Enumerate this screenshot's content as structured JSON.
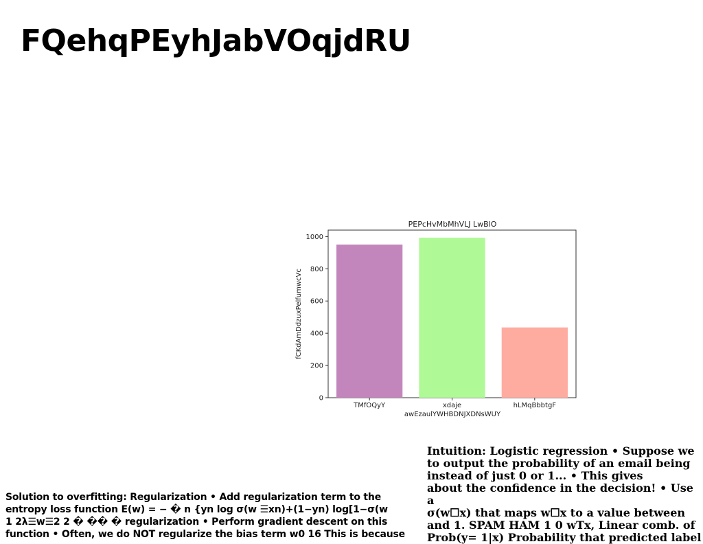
{
  "page_title": "FQehqPEyhJabVOqjdRU",
  "chart_data": {
    "type": "bar",
    "title": "PEPcHvMbMhVLJ LwBlO",
    "xlabel": "awEzaulYWHBDNJXDNsWUY",
    "ylabel": "fCKdAmDdzuxPelfumwcVc",
    "categories": [
      "TMfOQyY",
      "xdaje",
      "hLMqBbbtgF"
    ],
    "values": [
      950,
      993,
      436
    ],
    "colors": [
      "#c386bc",
      "#b0f997",
      "#feaba0"
    ],
    "ylim": [
      0,
      1040
    ],
    "yticks": [
      0,
      200,
      400,
      600,
      800,
      1000
    ],
    "grid": false
  },
  "text_left": "Solution to overfitting: Regularization • Add regularization term to the\nentropy loss function E(w) = − � n {yn log σ(w ☰xn)+(1−yn) log[1−σ(w\n1 2λ☰w☰2 2 � �� � regularization • Perform gradient descent on this\nfunction • Often, we do NOT regularize the bias term w0 16 This is because",
  "text_right": "Intuition: Logistic regression • Suppose we\nto output the probability of an email being\ninstead of just 0 or 1... • This gives\nabout the confidence in the decision! • Use a\nσ(w☐x) that maps w☐x to a value between\nand 1. SPAM HAM 1 0 wTx, Linear comb. of\nProb(y= 1|x) Probability that predicted label"
}
